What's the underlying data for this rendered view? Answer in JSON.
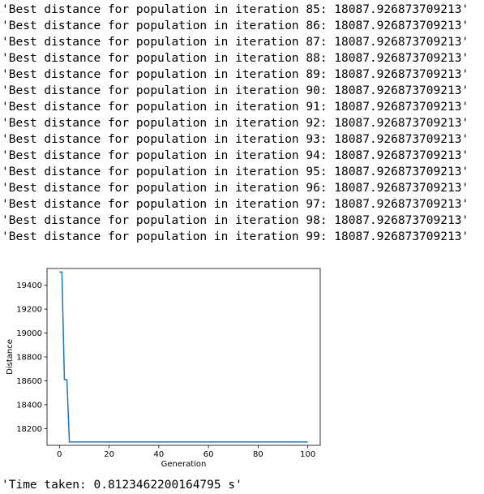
{
  "output": {
    "log_lines": [
      "'Best distance for population in iteration 85: 18087.926873709213'",
      "'Best distance for population in iteration 86: 18087.926873709213'",
      "'Best distance for population in iteration 87: 18087.926873709213'",
      "'Best distance for population in iteration 88: 18087.926873709213'",
      "'Best distance for population in iteration 89: 18087.926873709213'",
      "'Best distance for population in iteration 90: 18087.926873709213'",
      "'Best distance for population in iteration 91: 18087.926873709213'",
      "'Best distance for population in iteration 92: 18087.926873709213'",
      "'Best distance for population in iteration 93: 18087.926873709213'",
      "'Best distance for population in iteration 94: 18087.926873709213'",
      "'Best distance for population in iteration 95: 18087.926873709213'",
      "'Best distance for population in iteration 96: 18087.926873709213'",
      "'Best distance for population in iteration 97: 18087.926873709213'",
      "'Best distance for population in iteration 98: 18087.926873709213'",
      "'Best distance for population in iteration 99: 18087.926873709213'"
    ],
    "time_taken": "'Time taken: 0.8123462200164795 s'"
  },
  "chart_data": {
    "type": "line",
    "xlabel": "Generation",
    "ylabel": "Distance",
    "xlim": [
      -5,
      105
    ],
    "ylim": [
      18060,
      19540
    ],
    "xticks": [
      0,
      20,
      40,
      60,
      80,
      100
    ],
    "yticks": [
      18200,
      18400,
      18600,
      18800,
      19000,
      19200,
      19400
    ],
    "grid": false,
    "color": "#1f77b4",
    "series": [
      {
        "x": [
          0,
          1,
          2,
          3,
          4,
          100
        ],
        "y": [
          19510,
          19510,
          18610,
          18610,
          18088,
          18088
        ]
      }
    ]
  }
}
